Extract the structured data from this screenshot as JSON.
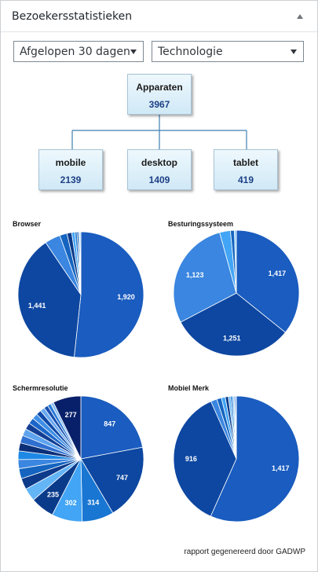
{
  "widget": {
    "title": "Bezoekersstatistieken"
  },
  "controls": {
    "period": "Afgelopen 30 dagen",
    "mode": "Technologie"
  },
  "tree": {
    "root": {
      "label": "Apparaten",
      "value": "3967"
    },
    "children": [
      {
        "label": "mobile",
        "value": "2139"
      },
      {
        "label": "desktop",
        "value": "1409"
      },
      {
        "label": "tablet",
        "value": "419"
      }
    ]
  },
  "chart_data": [
    {
      "type": "pie",
      "title": "Browser",
      "values": [
        1920,
        1441,
        150,
        70,
        45,
        30,
        20,
        15,
        12,
        10
      ],
      "labels": [
        "1,920",
        "1,441",
        "",
        "",
        "",
        "",
        "",
        "",
        "",
        ""
      ],
      "colors": [
        "#1a5cbf",
        "#0d47a1",
        "#3a86e0",
        "#1565c0",
        "#0a3a8a",
        "#42a5f5",
        "#1976d2",
        "#0d47a1",
        "#64b5f6",
        "#90caf9"
      ]
    },
    {
      "type": "pie",
      "title": "Besturingssysteem",
      "values": [
        1417,
        1251,
        1123,
        110,
        40,
        20
      ],
      "labels": [
        "1,417",
        "1,251",
        "1,123",
        "",
        "",
        ""
      ],
      "colors": [
        "#1a5cbf",
        "#0d47a1",
        "#3a86e0",
        "#42a5f5",
        "#1565c0",
        "#90caf9"
      ]
    },
    {
      "type": "pie",
      "title": "Schermresolutie",
      "values": [
        847,
        747,
        314,
        302,
        235,
        130,
        110,
        100,
        90,
        85,
        80,
        75,
        70,
        65,
        60,
        55,
        50,
        45,
        40,
        35,
        30,
        277
      ],
      "labels": [
        "847",
        "747",
        "314",
        "302",
        "235",
        "",
        "",
        "",
        "",
        "",
        "",
        "",
        "",
        "",
        "",
        "",
        "",
        "",
        "",
        "",
        "",
        "277"
      ],
      "colors": [
        "#1a5cbf",
        "#0d47a1",
        "#1976d2",
        "#42a5f5",
        "#0a3a8a",
        "#64b5f6",
        "#0d3a8a",
        "#1565c0",
        "#3a86e0",
        "#1e88e5",
        "#0b2f78",
        "#2f6fd0",
        "#5ea3ee",
        "#123f95",
        "#1c66c9",
        "#3f8fe6",
        "#0f4aa8",
        "#6aaaf0",
        "#174fb0",
        "#2b7ad8",
        "#8cc1f5",
        "#08206a"
      ]
    },
    {
      "type": "pie",
      "title": "Mobiel Merk",
      "values": [
        1417,
        916,
        40,
        30,
        25,
        20,
        15,
        12,
        10,
        8,
        6
      ],
      "labels": [
        "1,417",
        "916",
        "",
        "",
        "",
        "",
        "",
        "",
        "",
        "",
        ""
      ],
      "colors": [
        "#1a5cbf",
        "#0d47a1",
        "#3a86e0",
        "#1565c0",
        "#42a5f5",
        "#0a3a8a",
        "#64b5f6",
        "#1976d2",
        "#90caf9",
        "#2f6fd0",
        "#5ea3ee"
      ]
    }
  ],
  "footer": {
    "text": "rapport gegenereerd door GADWP"
  }
}
